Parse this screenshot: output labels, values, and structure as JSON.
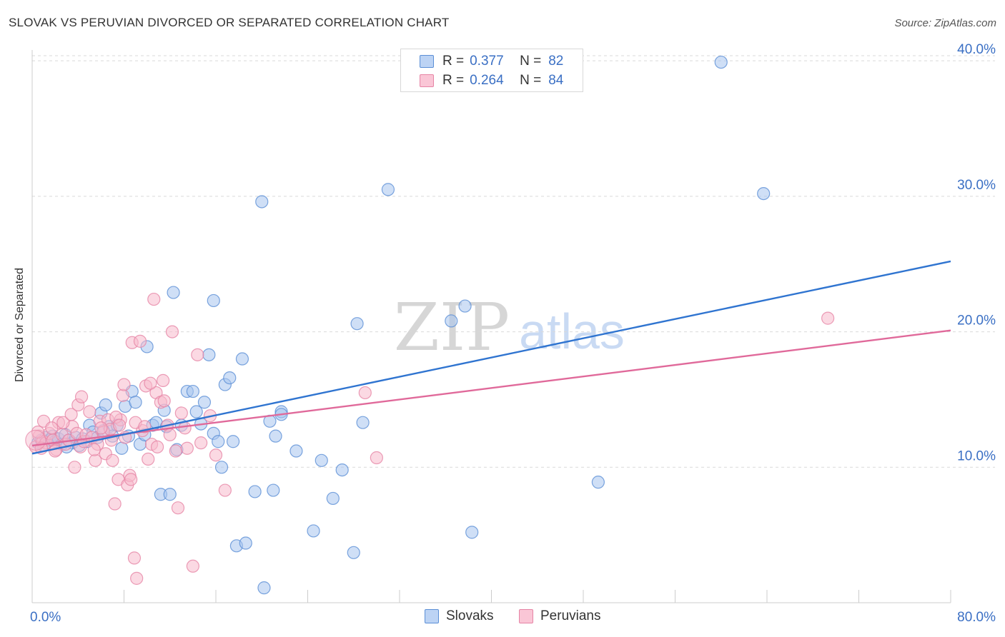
{
  "header": {
    "title": "SLOVAK VS PERUVIAN DIVORCED OR SEPARATED CORRELATION CHART",
    "source": "Source: ZipAtlas.com"
  },
  "legend": {
    "r_label": "R = ",
    "n_label": "N = ",
    "rows": [
      {
        "r": "0.377",
        "n": "82"
      },
      {
        "r": "0.264",
        "n": "84"
      }
    ]
  },
  "bottom_legend": [
    "Slovaks",
    "Peruvians"
  ],
  "watermark": {
    "zip": "ZIP",
    "atlas": "atlas"
  },
  "colors": {
    "slovak_fill": "#a8c4ef",
    "slovak_stroke": "#5b8fd6",
    "slovak_line": "#2f74d0",
    "peruvian_fill": "#f7b9cc",
    "peruvian_stroke": "#e684a5",
    "peruvian_line": "#e0699a",
    "axis_text": "#3a6fc4",
    "grid": "#d9d9d9"
  },
  "chart_data": {
    "type": "scatter",
    "title": "SLOVAK VS PERUVIAN DIVORCED OR SEPARATED CORRELATION CHART",
    "xlabel": "",
    "ylabel": "Divorced or Separated",
    "xlim": [
      0,
      80
    ],
    "ylim": [
      0,
      40.8
    ],
    "x_tick_labels": [
      "0.0%",
      "80.0%"
    ],
    "y_ticks": [
      10,
      20,
      30,
      40
    ],
    "y_tick_labels": [
      "10.0%",
      "20.0%",
      "30.0%",
      "40.0%"
    ],
    "grid": true,
    "series": [
      {
        "name": "Slovaks",
        "r": 0.377,
        "n": 82,
        "trend": {
          "x": [
            0,
            80
          ],
          "y": [
            11.0,
            25.2
          ]
        },
        "points": [
          [
            0.5,
            11.8
          ],
          [
            0.8,
            12.0
          ],
          [
            1.0,
            11.6
          ],
          [
            1.2,
            12.2
          ],
          [
            1.5,
            12.0
          ],
          [
            1.8,
            12.3
          ],
          [
            2.0,
            11.9
          ],
          [
            2.3,
            12.1
          ],
          [
            2.6,
            11.7
          ],
          [
            2.9,
            12.4
          ],
          [
            3.2,
            12.0
          ],
          [
            3.5,
            11.8
          ],
          [
            3.8,
            12.2
          ],
          [
            4.1,
            11.6
          ],
          [
            4.4,
            12.1
          ],
          [
            4.8,
            11.9
          ],
          [
            5.0,
            13.1
          ],
          [
            5.3,
            12.6
          ],
          [
            5.7,
            12.2
          ],
          [
            6.0,
            14.0
          ],
          [
            6.4,
            14.6
          ],
          [
            6.7,
            13.0
          ],
          [
            7.0,
            12.3
          ],
          [
            7.4,
            13.1
          ],
          [
            7.8,
            11.4
          ],
          [
            8.1,
            14.5
          ],
          [
            8.4,
            12.3
          ],
          [
            8.7,
            15.6
          ],
          [
            9.0,
            14.8
          ],
          [
            9.4,
            11.7
          ],
          [
            9.8,
            12.4
          ],
          [
            10.0,
            18.9
          ],
          [
            10.5,
            13.1
          ],
          [
            10.8,
            13.3
          ],
          [
            11.2,
            8.0
          ],
          [
            11.5,
            14.2
          ],
          [
            11.7,
            13.0
          ],
          [
            12.0,
            8.0
          ],
          [
            12.3,
            22.9
          ],
          [
            12.6,
            11.3
          ],
          [
            13.0,
            13.1
          ],
          [
            13.5,
            15.6
          ],
          [
            14.0,
            15.6
          ],
          [
            14.3,
            14.1
          ],
          [
            14.7,
            13.2
          ],
          [
            15.0,
            14.8
          ],
          [
            15.4,
            18.3
          ],
          [
            15.8,
            22.3
          ],
          [
            15.8,
            12.5
          ],
          [
            16.2,
            11.9
          ],
          [
            16.5,
            10.0
          ],
          [
            16.8,
            16.1
          ],
          [
            17.2,
            16.6
          ],
          [
            17.5,
            11.9
          ],
          [
            17.8,
            4.2
          ],
          [
            18.3,
            18.0
          ],
          [
            18.6,
            4.4
          ],
          [
            19.4,
            8.2
          ],
          [
            20.0,
            29.6
          ],
          [
            20.2,
            1.1
          ],
          [
            20.7,
            13.4
          ],
          [
            21.0,
            8.3
          ],
          [
            21.2,
            12.3
          ],
          [
            21.7,
            14.1
          ],
          [
            21.7,
            13.9
          ],
          [
            23.0,
            11.2
          ],
          [
            24.5,
            5.3
          ],
          [
            25.2,
            10.5
          ],
          [
            26.2,
            7.7
          ],
          [
            27.0,
            9.8
          ],
          [
            28.0,
            3.7
          ],
          [
            28.3,
            20.6
          ],
          [
            28.8,
            13.3
          ],
          [
            31.0,
            30.5
          ],
          [
            36.5,
            20.8
          ],
          [
            37.7,
            21.9
          ],
          [
            38.3,
            5.2
          ],
          [
            49.3,
            8.9
          ],
          [
            60.0,
            39.9
          ],
          [
            63.7,
            30.2
          ],
          [
            3.0,
            11.5
          ],
          [
            6.2,
            12.7
          ]
        ]
      },
      {
        "name": "Peruvians",
        "r": 0.264,
        "n": 84,
        "trend": {
          "x": [
            0,
            80
          ],
          "y": [
            11.6,
            20.1
          ]
        },
        "points": [
          [
            0.3,
            11.5
          ],
          [
            0.6,
            12.3
          ],
          [
            0.9,
            11.9
          ],
          [
            1.2,
            11.8
          ],
          [
            1.5,
            12.5
          ],
          [
            1.8,
            12.0
          ],
          [
            2.1,
            11.3
          ],
          [
            2.3,
            13.3
          ],
          [
            2.6,
            12.4
          ],
          [
            2.9,
            11.7
          ],
          [
            3.2,
            12.0
          ],
          [
            3.5,
            13.0
          ],
          [
            3.7,
            10.0
          ],
          [
            3.9,
            12.5
          ],
          [
            4.2,
            11.5
          ],
          [
            4.5,
            11.9
          ],
          [
            4.7,
            12.4
          ],
          [
            5.0,
            14.1
          ],
          [
            5.2,
            12.2
          ],
          [
            5.5,
            10.5
          ],
          [
            5.7,
            11.7
          ],
          [
            5.9,
            13.4
          ],
          [
            6.2,
            12.6
          ],
          [
            6.4,
            11.0
          ],
          [
            6.6,
            13.5
          ],
          [
            6.8,
            12.8
          ],
          [
            7.0,
            10.5
          ],
          [
            7.2,
            7.3
          ],
          [
            7.5,
            9.1
          ],
          [
            7.7,
            13.5
          ],
          [
            7.9,
            15.3
          ],
          [
            8.1,
            12.2
          ],
          [
            8.3,
            8.7
          ],
          [
            8.5,
            9.4
          ],
          [
            8.7,
            19.2
          ],
          [
            8.9,
            3.3
          ],
          [
            9.1,
            1.8
          ],
          [
            9.4,
            19.3
          ],
          [
            9.6,
            12.7
          ],
          [
            9.9,
            16.0
          ],
          [
            10.1,
            10.6
          ],
          [
            10.4,
            11.7
          ],
          [
            10.6,
            22.4
          ],
          [
            10.8,
            15.5
          ],
          [
            11.2,
            14.8
          ],
          [
            11.5,
            14.9
          ],
          [
            11.8,
            13.1
          ],
          [
            12.0,
            12.4
          ],
          [
            12.2,
            20.0
          ],
          [
            12.5,
            11.2
          ],
          [
            12.7,
            7.0
          ],
          [
            13.0,
            14.0
          ],
          [
            13.3,
            12.9
          ],
          [
            13.5,
            11.4
          ],
          [
            14.0,
            2.7
          ],
          [
            14.4,
            18.3
          ],
          [
            14.7,
            11.8
          ],
          [
            15.5,
            13.8
          ],
          [
            16.0,
            10.9
          ],
          [
            16.8,
            8.3
          ],
          [
            29.0,
            15.5
          ],
          [
            30.0,
            10.7
          ],
          [
            69.3,
            21.0
          ],
          [
            1.0,
            13.4
          ],
          [
            1.7,
            12.9
          ],
          [
            2.0,
            11.2
          ],
          [
            2.7,
            13.3
          ],
          [
            3.4,
            13.9
          ],
          [
            4.0,
            14.6
          ],
          [
            4.3,
            15.2
          ],
          [
            5.4,
            11.3
          ],
          [
            6.0,
            12.9
          ],
          [
            6.9,
            12.0
          ],
          [
            7.3,
            13.7
          ],
          [
            7.6,
            13.1
          ],
          [
            8.0,
            16.1
          ],
          [
            8.6,
            9.1
          ],
          [
            9.0,
            13.3
          ],
          [
            9.8,
            13.0
          ],
          [
            10.3,
            16.2
          ],
          [
            10.9,
            11.5
          ],
          [
            11.4,
            16.4
          ],
          [
            0.5,
            12.6
          ],
          [
            0.8,
            11.4
          ]
        ]
      }
    ]
  }
}
